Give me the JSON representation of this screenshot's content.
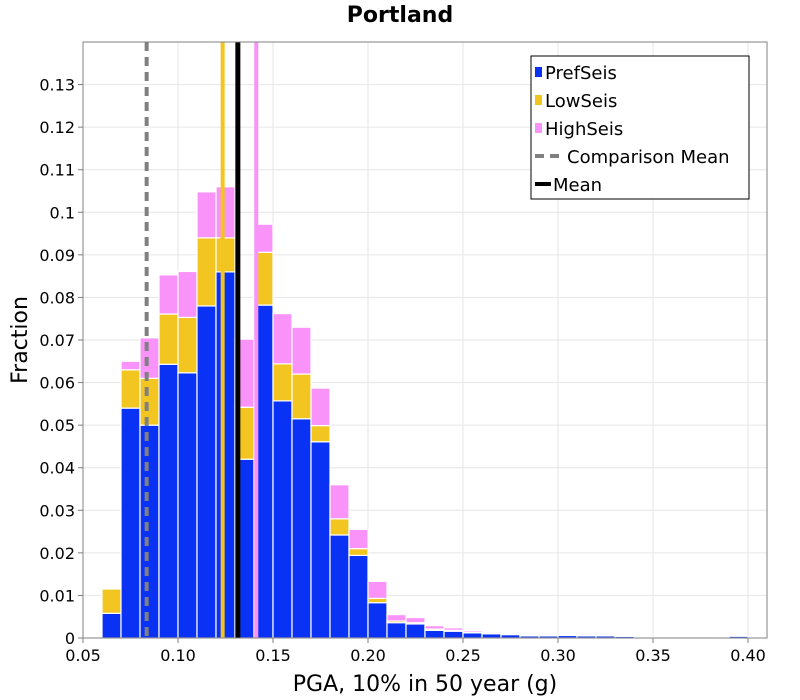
{
  "chart_data": {
    "type": "bar",
    "stacked": true,
    "title": "Portland",
    "xlabel": "PGA, 10% in 50 year (g)",
    "ylabel": "Fraction",
    "xlim": [
      0.05,
      0.41
    ],
    "ylim": [
      0,
      0.14
    ],
    "x_ticks": [
      "0.05",
      "0.10",
      "0.15",
      "0.20",
      "0.25",
      "0.30",
      "0.35",
      "0.40"
    ],
    "y_ticks": [
      "0",
      "0.01",
      "0.02",
      "0.03",
      "0.04",
      "0.05",
      "0.06",
      "0.07",
      "0.08",
      "0.09",
      "0.1",
      "0.11",
      "0.12",
      "0.13"
    ],
    "grid": true,
    "legend_position": "top-right",
    "bin_width": 0.01,
    "bin_centers": [
      0.065,
      0.075,
      0.085,
      0.095,
      0.105,
      0.115,
      0.125,
      0.135,
      0.145,
      0.155,
      0.165,
      0.175,
      0.185,
      0.195,
      0.205,
      0.215,
      0.225,
      0.235,
      0.245,
      0.255,
      0.265,
      0.275,
      0.285,
      0.295,
      0.305,
      0.315,
      0.325,
      0.335,
      0.345,
      0.355,
      0.365,
      0.375,
      0.385,
      0.395
    ],
    "series": [
      {
        "name": "PrefSeis",
        "color": "#0a32f5",
        "values": [
          0.0058,
          0.054,
          0.05,
          0.0643,
          0.0623,
          0.078,
          0.086,
          0.042,
          0.0782,
          0.0557,
          0.0515,
          0.0461,
          0.0242,
          0.0194,
          0.0083,
          0.0036,
          0.0033,
          0.0018,
          0.0016,
          0.0012,
          0.001,
          0.0008,
          0.0005,
          0.0005,
          0.0006,
          0.0005,
          0.0005,
          0.0004,
          0.0002,
          0.0001,
          0.0001,
          0.0001,
          0.0002,
          0.0004
        ]
      },
      {
        "name": "LowSeis",
        "color": "#f2c520",
        "values": [
          0.0057,
          0.009,
          0.011,
          0.0118,
          0.013,
          0.016,
          0.008,
          0.0122,
          0.0124,
          0.0087,
          0.0105,
          0.0038,
          0.0038,
          0.0016,
          0.001,
          0.0004,
          0.0003,
          0.0003,
          0.0002,
          0.0001,
          0.0001,
          0.0001,
          0.0001,
          0.0,
          0.0,
          0.0,
          0.0,
          0.0,
          0.0,
          0.0,
          0.0,
          0.0,
          0.0,
          0.0
        ]
      },
      {
        "name": "HighSeis",
        "color": "#f993f9",
        "values": [
          0.0,
          0.002,
          0.0095,
          0.0092,
          0.0108,
          0.0108,
          0.012,
          0.016,
          0.0066,
          0.0118,
          0.011,
          0.0088,
          0.008,
          0.0045,
          0.004,
          0.0015,
          0.0012,
          0.0008,
          0.0006,
          0.0004,
          0.0003,
          0.0002,
          0.0001,
          0.0001,
          0.0001,
          0.0001,
          0.0001,
          0.0001,
          0.0,
          0.0,
          0.0,
          0.0002,
          0.0001,
          0.0
        ]
      }
    ],
    "reference_lines": [
      {
        "name": "Comparison Mean",
        "x": 0.0835,
        "color": "#808080",
        "style": "dashed"
      },
      {
        "name": "Mean",
        "x": 0.1315,
        "color": "#000000",
        "style": "solid"
      },
      {
        "name": "LowSeis",
        "x": 0.1235,
        "color": "#f2c520",
        "style": "solid"
      },
      {
        "name": "HighSeis",
        "x": 0.1412,
        "color": "#f993f9",
        "style": "solid"
      }
    ],
    "legend": [
      {
        "label": "PrefSeis",
        "kind": "square",
        "color": "#0a32f5"
      },
      {
        "label": "LowSeis",
        "kind": "square",
        "color": "#f2c520"
      },
      {
        "label": "HighSeis",
        "kind": "square",
        "color": "#f993f9"
      },
      {
        "label": "Comparison Mean",
        "kind": "dash",
        "color": "#808080"
      },
      {
        "label": "Mean",
        "kind": "line",
        "color": "#000000"
      }
    ]
  }
}
